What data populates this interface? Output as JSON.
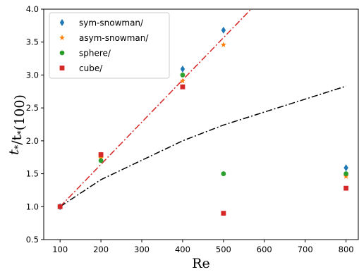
{
  "chart_data": {
    "type": "scatter",
    "xlabel": "Re",
    "ylabel": "t*/t*(100)",
    "xlim": [
      60,
      830
    ],
    "ylim": [
      0.5,
      4.0
    ],
    "xticks": [
      100,
      200,
      300,
      400,
      500,
      600,
      700,
      800
    ],
    "yticks": [
      0.5,
      1.0,
      1.5,
      2.0,
      2.5,
      3.0,
      3.5,
      4.0
    ],
    "xtick_labels": [
      "100",
      "200",
      "300",
      "400",
      "500",
      "600",
      "700",
      "800"
    ],
    "ytick_labels": [
      "0.5",
      "1.0",
      "1.5",
      "2.0",
      "2.5",
      "3.0",
      "3.5",
      "4.0"
    ],
    "grid": false,
    "legend_position": "top-left",
    "series": [
      {
        "name": "sym-snowman/",
        "marker": "diamond",
        "color": "#1f77b4",
        "x": [
          100,
          200,
          400,
          500,
          800
        ],
        "y": [
          1.0,
          1.78,
          3.09,
          3.68,
          1.59
        ]
      },
      {
        "name": "asym-snowman/",
        "marker": "star",
        "color": "#ff7f0e",
        "x": [
          100,
          200,
          400,
          500,
          800
        ],
        "y": [
          1.0,
          1.74,
          2.91,
          3.46,
          1.46
        ]
      },
      {
        "name": "sphere/",
        "marker": "circle",
        "color": "#2ca02c",
        "x": [
          100,
          200,
          400,
          500,
          800
        ],
        "y": [
          1.0,
          1.7,
          3.0,
          1.5,
          1.5
        ]
      },
      {
        "name": "cube/",
        "marker": "square",
        "color": "#d62728",
        "x": [
          100,
          200,
          400,
          500,
          800
        ],
        "y": [
          1.0,
          1.79,
          2.82,
          0.9,
          1.28
        ]
      }
    ],
    "reference_lines": [
      {
        "style": "dash-dot",
        "color": "#d62728",
        "x": [
          100,
          580
        ],
        "y": [
          1.0,
          4.08
        ]
      },
      {
        "style": "dash-dot",
        "color": "#000000",
        "x": [
          100,
          200,
          400,
          500,
          800
        ],
        "y": [
          1.0,
          1.41,
          2.0,
          2.24,
          2.83
        ]
      }
    ]
  }
}
